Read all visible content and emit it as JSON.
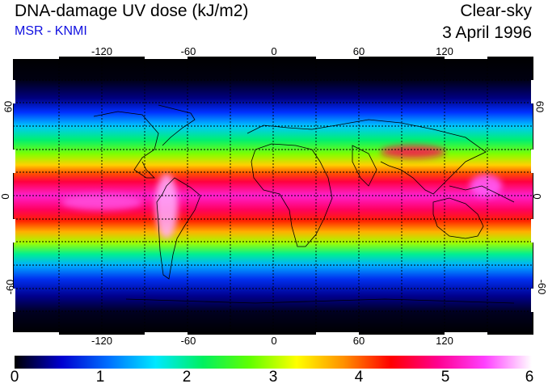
{
  "header": {
    "title": "DNA-damage UV dose (kJ/m2)",
    "subtitle": "MSR - KNMI",
    "sky_condition": "Clear-sky",
    "date": "3 April 1996"
  },
  "map": {
    "longitude_ticks": [
      "-120",
      "-60",
      "0",
      "60",
      "120"
    ],
    "latitude_ticks_left": [
      "60",
      "0",
      "-60"
    ],
    "latitude_ticks_right": [
      "60",
      "0",
      "-60"
    ],
    "lon_range": [
      -180,
      180
    ],
    "lat_range": [
      -90,
      90
    ],
    "gridlines": true,
    "grid_spacing_deg": 30
  },
  "colorbar": {
    "labels": [
      "0",
      "1",
      "2",
      "3",
      "4",
      "5",
      "6"
    ],
    "min": 0,
    "max": 6,
    "colors": [
      "#000000",
      "#0000d0",
      "#0070ff",
      "#00e8ff",
      "#00f060",
      "#60ff00",
      "#ffff00",
      "#ff9000",
      "#ff0000",
      "#ff0090",
      "#ff40ff",
      "#ffffff"
    ]
  }
}
